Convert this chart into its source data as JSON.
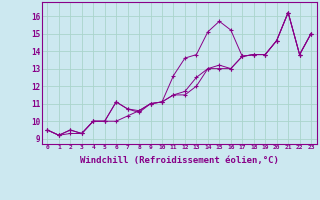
{
  "background_color": "#cce8f0",
  "grid_color": "#aad4cc",
  "line_color": "#880088",
  "marker": "+",
  "xlabel": "Windchill (Refroidissement éolien,°C)",
  "xlabel_fontsize": 6.5,
  "ylabel_values": [
    9,
    10,
    11,
    12,
    13,
    14,
    15,
    16
  ],
  "xlim": [
    -0.5,
    23.5
  ],
  "ylim": [
    8.7,
    16.8
  ],
  "xtick_labels": [
    "0",
    "1",
    "2",
    "3",
    "4",
    "5",
    "6",
    "7",
    "8",
    "9",
    "10",
    "11",
    "12",
    "13",
    "14",
    "15",
    "16",
    "17",
    "18",
    "19",
    "20",
    "21",
    "22",
    "23"
  ],
  "series": [
    [
      9.5,
      9.2,
      9.5,
      9.3,
      10.0,
      10.0,
      11.1,
      10.7,
      10.5,
      11.0,
      11.1,
      12.6,
      13.6,
      13.8,
      15.1,
      15.7,
      15.2,
      13.7,
      13.8,
      13.8,
      14.6,
      16.2,
      13.8,
      15.0
    ],
    [
      9.5,
      9.2,
      9.5,
      9.3,
      10.0,
      10.0,
      11.1,
      10.7,
      10.6,
      11.0,
      11.1,
      11.5,
      11.7,
      12.5,
      13.0,
      13.2,
      13.0,
      13.7,
      13.8,
      13.8,
      14.6,
      16.2,
      13.8,
      15.0
    ],
    [
      9.5,
      9.2,
      9.3,
      9.3,
      10.0,
      10.0,
      10.0,
      10.3,
      10.6,
      11.0,
      11.1,
      11.5,
      11.5,
      12.0,
      13.0,
      13.0,
      13.0,
      13.7,
      13.8,
      13.8,
      14.6,
      16.2,
      13.8,
      15.0
    ]
  ],
  "figsize": [
    3.2,
    2.0
  ],
  "dpi": 100
}
